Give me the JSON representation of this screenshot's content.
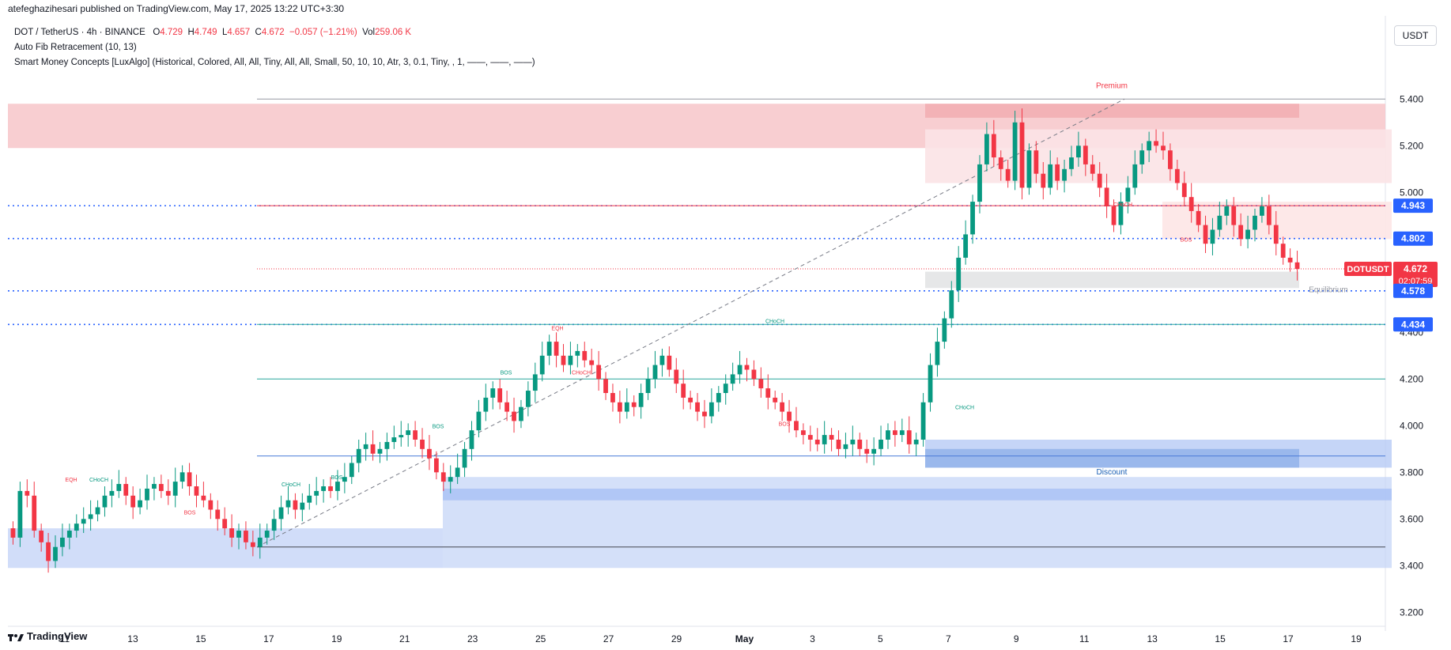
{
  "header": {
    "published_line": "atefeghazihesari published on TradingView.com, May 17, 2025 13:22 UTC+3:30"
  },
  "legend": {
    "symbol": "DOT / TetherUS · 4h · BINANCE",
    "open_label": "O",
    "open": "4.729",
    "high_label": "H",
    "high": "4.749",
    "low_label": "L",
    "low": "4.657",
    "close_label": "C",
    "close": "4.672",
    "change": "−0.057 (−1.21%)",
    "vol_label": "Vol",
    "vol": "259.06 K",
    "indicator1": "Auto Fib Retracement (10, 13)",
    "indicator2": "Smart Money Concepts [LuxAlgo] (Historical, Colored, All, All, Tiny, All, All, Small, 50, 10, 10, Atr, 3, 0.1, Tiny, , 1, ——, ——, ——)"
  },
  "currency_button": "USDT",
  "footer": {
    "brand": "TradingView"
  },
  "colors": {
    "bull": "#089981",
    "bear": "#f23645",
    "blue_line": "#2962ff",
    "premium_zone": "#f7c6c9",
    "discount_zone": "#c6d5f7",
    "green_line": "#26a69a"
  },
  "chart_data": {
    "type": "candlestick",
    "symbol": "DOTUSDT",
    "timeframe": "4h",
    "x_tick_labels": [
      "11",
      "13",
      "15",
      "17",
      "19",
      "21",
      "23",
      "25",
      "27",
      "29",
      "May",
      "3",
      "5",
      "7",
      "9",
      "11",
      "13",
      "15",
      "17",
      "19"
    ],
    "y_tick_labels": [
      "5.400",
      "5.200",
      "5.000",
      "4.400",
      "4.200",
      "4.000",
      "3.800",
      "3.600",
      "3.400",
      "3.200"
    ],
    "ylim": [
      3.14,
      5.54
    ],
    "close_series": [
      3.52,
      3.72,
      3.7,
      3.55,
      3.5,
      3.42,
      3.48,
      3.52,
      3.55,
      3.58,
      3.6,
      3.62,
      3.65,
      3.7,
      3.72,
      3.75,
      3.7,
      3.65,
      3.68,
      3.73,
      3.75,
      3.72,
      3.7,
      3.76,
      3.8,
      3.74,
      3.7,
      3.68,
      3.64,
      3.6,
      3.56,
      3.52,
      3.55,
      3.5,
      3.48,
      3.52,
      3.55,
      3.6,
      3.65,
      3.68,
      3.64,
      3.67,
      3.7,
      3.72,
      3.74,
      3.72,
      3.76,
      3.78,
      3.84,
      3.9,
      3.92,
      3.88,
      3.9,
      3.93,
      3.95,
      3.96,
      3.98,
      3.94,
      3.9,
      3.86,
      3.8,
      3.76,
      3.78,
      3.82,
      3.9,
      3.98,
      4.06,
      4.12,
      4.16,
      4.1,
      4.06,
      4.02,
      4.08,
      4.15,
      4.22,
      4.3,
      4.36,
      4.3,
      4.26,
      4.3,
      4.32,
      4.28,
      4.26,
      4.2,
      4.14,
      4.1,
      4.06,
      4.1,
      4.08,
      4.14,
      4.2,
      4.26,
      4.3,
      4.24,
      4.18,
      4.12,
      4.1,
      4.06,
      4.04,
      4.1,
      4.14,
      4.18,
      4.22,
      4.26,
      4.24,
      4.2,
      4.16,
      4.12,
      4.1,
      4.06,
      4.02,
      3.98,
      3.96,
      3.94,
      3.92,
      3.96,
      3.94,
      3.9,
      3.92,
      3.94,
      3.9,
      3.88,
      3.9,
      3.94,
      3.98,
      3.96,
      3.98,
      3.92,
      3.94,
      4.1,
      4.26,
      4.36,
      4.46,
      4.58,
      4.72,
      4.82,
      4.96,
      5.12,
      5.25,
      5.15,
      5.1,
      5.05,
      5.3,
      5.02,
      5.18,
      5.08,
      5.02,
      5.12,
      5.05,
      5.1,
      5.15,
      5.2,
      5.12,
      5.08,
      5.02,
      4.94,
      4.86,
      4.96,
      5.02,
      5.12,
      5.18,
      5.22,
      5.2,
      5.18,
      5.1,
      5.04,
      4.98,
      4.92,
      4.86,
      4.78,
      4.84,
      4.9,
      4.94,
      4.86,
      4.8,
      4.84,
      4.9,
      4.94,
      4.86,
      4.78,
      4.72,
      4.7,
      4.672
    ],
    "price_labels": [
      {
        "text": "4.943",
        "value": 4.943,
        "kind": "blue"
      },
      {
        "text": "4.802",
        "value": 4.802,
        "kind": "blue"
      },
      {
        "text": "DOTUSDT",
        "value": 4.672,
        "kind": "red"
      },
      {
        "text": "4.672",
        "value": 4.672,
        "kind": "red"
      },
      {
        "text": "02:07:59",
        "value": 4.672,
        "kind": "red-sub"
      },
      {
        "text": "4.578",
        "value": 4.578,
        "kind": "blue"
      },
      {
        "text": "4.434",
        "value": 4.434,
        "kind": "blue"
      }
    ],
    "zone_labels": {
      "premium": "Premium",
      "discount": "Discount",
      "equilibrium": "Equilibrium"
    },
    "structure_labels": [
      "EQH",
      "CHoCH",
      "BOS",
      "CHoCH",
      "BOS",
      "BOS",
      "EQH",
      "CHoCH",
      "CHoCH",
      "BOS",
      "CHoCH",
      "CHoCH",
      "BOS",
      "BOS"
    ]
  }
}
